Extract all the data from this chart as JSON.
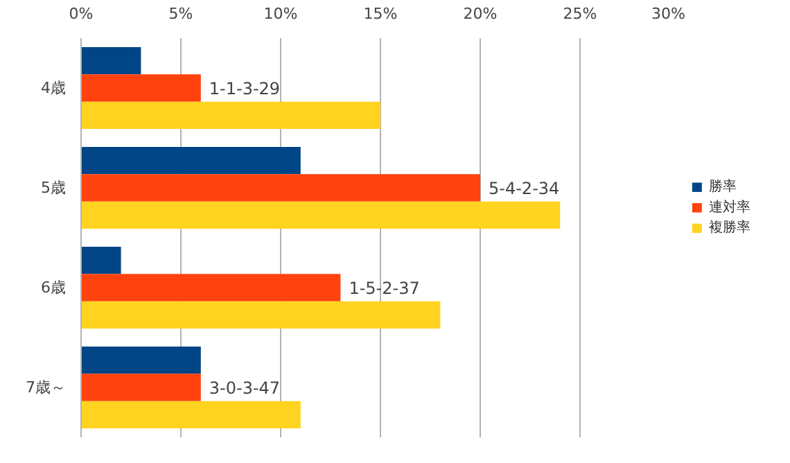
{
  "chart_data": {
    "type": "bar",
    "orientation": "horizontal",
    "categories": [
      "4歳",
      "5歳",
      "6歳",
      "7歳～"
    ],
    "series": [
      {
        "name": "勝率",
        "color": "#004586",
        "values": [
          3,
          11,
          2,
          6
        ]
      },
      {
        "name": "連対率",
        "color": "#ff420e",
        "values": [
          6,
          20,
          13,
          6
        ]
      },
      {
        "name": "複勝率",
        "color": "#ffd320",
        "values": [
          15,
          24,
          18,
          11
        ]
      }
    ],
    "xlim": [
      0,
      30
    ],
    "xticks": [
      {
        "value": 0,
        "label": "0%"
      },
      {
        "value": 5,
        "label": "5%"
      },
      {
        "value": 10,
        "label": "10%"
      },
      {
        "value": 15,
        "label": "15%"
      },
      {
        "value": 20,
        "label": "20%"
      },
      {
        "value": 25,
        "label": "25%"
      },
      {
        "value": 30,
        "label": "30%"
      }
    ],
    "grid": "x",
    "legend": "right",
    "annotations": [
      {
        "text": "1-1-3-29",
        "x": 6,
        "y": "4歳"
      },
      {
        "text": "5-4-2-34",
        "x": 20,
        "y": "5歳"
      },
      {
        "text": "1-5-2-37",
        "x": 13,
        "y": "6歳"
      },
      {
        "text": "3-0-3-47",
        "x": 6,
        "y": "7歳～"
      }
    ]
  }
}
